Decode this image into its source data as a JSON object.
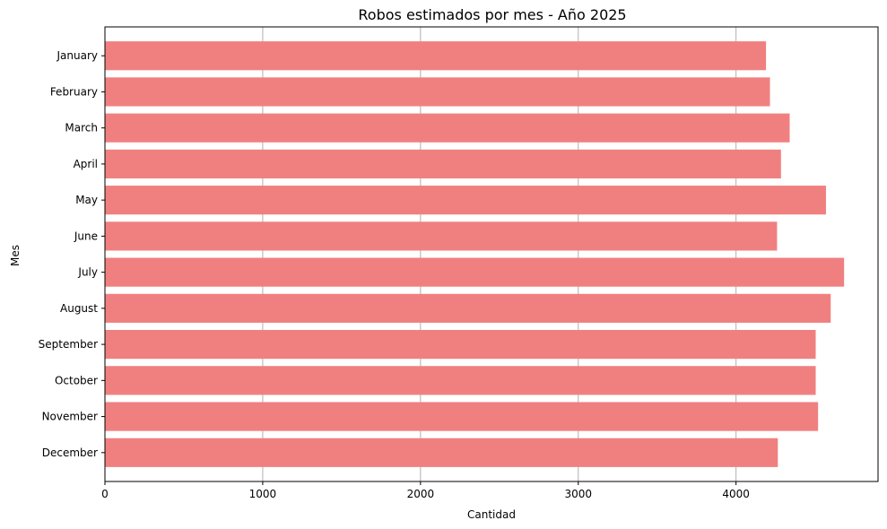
{
  "chart_data": {
    "type": "bar",
    "orientation": "horizontal",
    "title": "Robos estimados por mes - Año 2025",
    "xlabel": "Cantidad",
    "ylabel": "Mes",
    "categories": [
      "January",
      "February",
      "March",
      "April",
      "May",
      "June",
      "July",
      "August",
      "September",
      "October",
      "November",
      "December"
    ],
    "values": [
      4190,
      4215,
      4340,
      4285,
      4570,
      4260,
      4685,
      4600,
      4505,
      4505,
      4520,
      4265
    ],
    "xlim": [
      0,
      4900
    ],
    "xticks": [
      0,
      1000,
      2000,
      3000,
      4000
    ],
    "grid": "vertical",
    "bar_color": "#f08080"
  }
}
